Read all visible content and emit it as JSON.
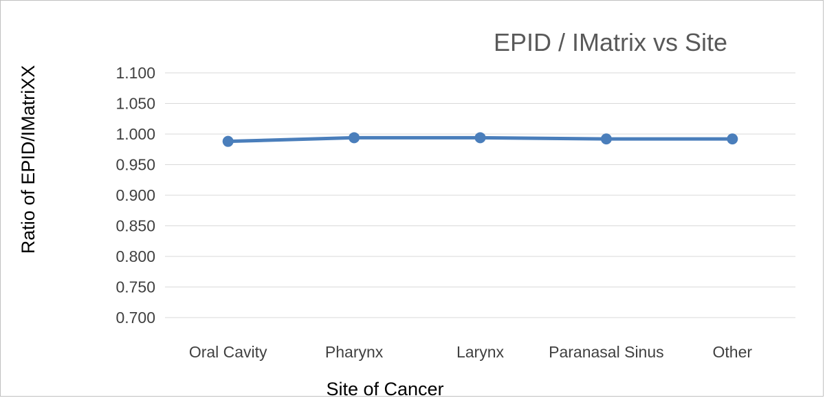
{
  "chart_data": {
    "type": "line",
    "title": "EPID / IMatrix vs Site",
    "xlabel": "Site of Cancer",
    "ylabel": "Ratio of EPID/IMatriXX",
    "categories": [
      "Oral Cavity",
      "Pharynx",
      "Larynx",
      "Paranasal Sinus",
      "Other"
    ],
    "series": [
      {
        "values": [
          0.988,
          0.994,
          0.994,
          0.992,
          0.992
        ]
      }
    ],
    "ylim": [
      0.7,
      1.1
    ],
    "yticks": [
      "0.700",
      "0.750",
      "0.800",
      "0.850",
      "0.900",
      "0.950",
      "1.000",
      "1.050",
      "1.100"
    ],
    "grid": true,
    "legend": "none",
    "colors": {
      "series": "#4a7ebb",
      "gridline": "#d9d9d9",
      "title": "#595959"
    }
  }
}
